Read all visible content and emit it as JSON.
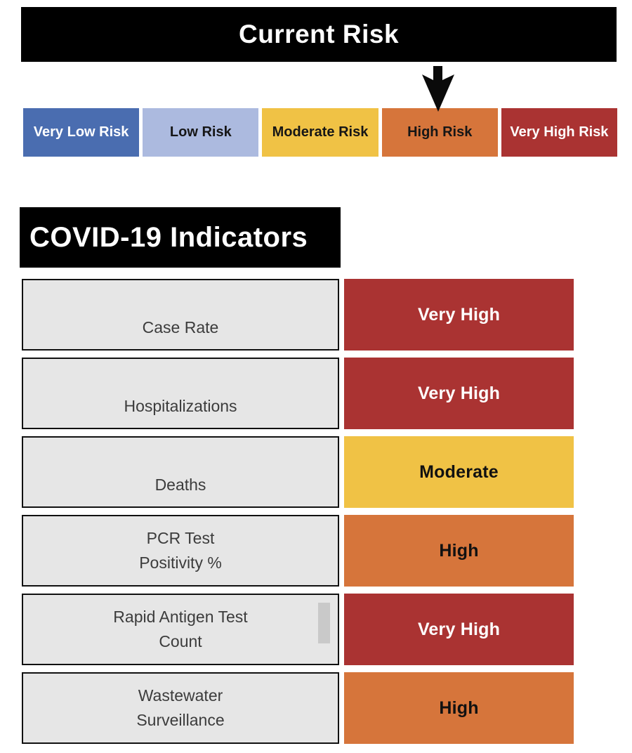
{
  "page": {
    "background_color": "#ffffff"
  },
  "header": {
    "title": "Current Risk"
  },
  "risk_scale": {
    "current_level": "High Risk",
    "current_index": 3,
    "arrow_icon": "down-arrow-icon",
    "arrow_color": "#0a0a0a",
    "levels": [
      {
        "label": "Very Low Risk",
        "color": "#4A6DB0",
        "text_color": "#ffffff"
      },
      {
        "label": "Low Risk",
        "color": "#ACBADF",
        "text_color": "#161616"
      },
      {
        "label": "Moderate Risk",
        "color": "#F0C245",
        "text_color": "#161616"
      },
      {
        "label": "High Risk",
        "color": "#D6753B",
        "text_color": "#161616"
      },
      {
        "label": "Very High Risk",
        "color": "#AA3332",
        "text_color": "#ffffff"
      }
    ]
  },
  "indicators_section": {
    "title": "COVID-19 Indicators",
    "label_box_color": "#E6E6E6",
    "label_box_border_color": "#111111",
    "label_text_color": "#3C3C3C",
    "rows": [
      {
        "label_lines": [
          "Case Rate"
        ],
        "status": "Very High",
        "status_color": "#AA3332",
        "status_text_color": "#ffffff",
        "has_scrollbar": false
      },
      {
        "label_lines": [
          "Hospitalizations"
        ],
        "status": "Very High",
        "status_color": "#AA3332",
        "status_text_color": "#ffffff",
        "has_scrollbar": false
      },
      {
        "label_lines": [
          "Deaths"
        ],
        "status": "Moderate",
        "status_color": "#F0C245",
        "status_text_color": "#111111",
        "has_scrollbar": false
      },
      {
        "label_lines": [
          "PCR Test",
          "Positivity %"
        ],
        "status": "High",
        "status_color": "#D6753B",
        "status_text_color": "#111111",
        "has_scrollbar": false
      },
      {
        "label_lines": [
          "Rapid Antigen Test",
          "Count"
        ],
        "status": "Very High",
        "status_color": "#AA3332",
        "status_text_color": "#ffffff",
        "has_scrollbar": true
      },
      {
        "label_lines": [
          "Wastewater",
          "Surveillance"
        ],
        "status": "High",
        "status_color": "#D6753B",
        "status_text_color": "#111111",
        "has_scrollbar": false
      }
    ]
  }
}
